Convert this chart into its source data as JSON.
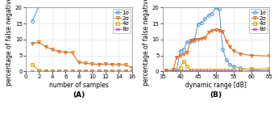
{
  "plot_A": {
    "xlabel": "number of samples",
    "ylabel": "percentage of false negatives",
    "label": "(A)",
    "xlim": [
      0,
      16
    ],
    "ylim": [
      0,
      20
    ],
    "xticks": [
      0,
      2,
      4,
      6,
      8,
      10,
      12,
      14,
      16
    ],
    "yticks": [
      0,
      5,
      10,
      15,
      20
    ],
    "series": {
      "1sigma": {
        "x": [
          1,
          2
        ],
        "y": [
          15.8,
          20.5
        ],
        "color": "#5599dd",
        "marker": "o",
        "label": "1σ"
      },
      "2sigma": {
        "x": [
          1,
          2,
          3,
          4,
          5,
          6,
          7,
          8,
          9,
          10,
          11,
          12,
          13,
          14,
          15,
          16
        ],
        "y": [
          8.8,
          9.1,
          7.8,
          6.8,
          6.2,
          6.0,
          5.8,
          2.8,
          2.5,
          2.3,
          2.2,
          2.3,
          2.2,
          2.1,
          2.0,
          1.1
        ],
        "color": "#dd6611",
        "marker": "v",
        "label": "2σ"
      },
      "4sigma": {
        "x": [
          1,
          2,
          3,
          4,
          5,
          6,
          7,
          8,
          9,
          10,
          11,
          12,
          13,
          14,
          15,
          16
        ],
        "y": [
          2.2,
          0.2,
          0.1,
          0.0,
          0.0,
          0.0,
          0.0,
          0.0,
          0.0,
          0.0,
          0.0,
          0.0,
          0.0,
          0.0,
          0.0,
          0.0
        ],
        "color": "#ddaa00",
        "marker": "s",
        "label": "4σ"
      },
      "8sigma": {
        "x": [
          1,
          2,
          3,
          4,
          5,
          6,
          7,
          8,
          9,
          10,
          11,
          12,
          13,
          14,
          15,
          16
        ],
        "y": [
          0.05,
          0.05,
          0.05,
          0.05,
          0.05,
          0.05,
          0.05,
          0.05,
          0.05,
          0.05,
          0.05,
          0.05,
          0.05,
          0.05,
          0.05,
          0.05
        ],
        "color": "#aa55cc",
        "marker": "x",
        "label": "8σ"
      }
    }
  },
  "plot_B": {
    "xlabel": "dynamic range [dB]",
    "ylabel": "percentage of false negatives",
    "label": "(B)",
    "xlim": [
      35,
      65
    ],
    "ylim": [
      0,
      20
    ],
    "xticks": [
      35,
      40,
      45,
      50,
      55,
      60,
      65
    ],
    "yticks": [
      0,
      5,
      10,
      15,
      20
    ],
    "series": {
      "1sigma": {
        "x": [
          36,
          38,
          39,
          40,
          41,
          42,
          43,
          44,
          45,
          46,
          47,
          48,
          49,
          50,
          51,
          52,
          53,
          54,
          55,
          57,
          60,
          65
        ],
        "y": [
          0.1,
          0.2,
          0.3,
          6.5,
          7.0,
          9.2,
          9.5,
          9.8,
          14.8,
          15.2,
          16.5,
          17.5,
          18.2,
          20.0,
          19.5,
          7.0,
          3.5,
          2.2,
          1.5,
          1.0,
          0.5,
          0.2
        ],
        "color": "#5599dd",
        "marker": "o",
        "label": "1σ"
      },
      "2sigma": {
        "x": [
          36,
          38,
          39,
          40,
          41,
          42,
          43,
          44,
          45,
          46,
          47,
          48,
          49,
          50,
          51,
          52,
          53,
          54,
          55,
          57,
          60,
          65
        ],
        "y": [
          0.2,
          0.5,
          4.5,
          5.0,
          5.5,
          6.0,
          9.8,
          10.0,
          10.0,
          10.2,
          10.5,
          12.2,
          12.8,
          13.0,
          12.8,
          12.5,
          9.5,
          7.8,
          6.5,
          5.5,
          5.0,
          4.8
        ],
        "color": "#dd6611",
        "marker": "v",
        "label": "2σ"
      },
      "4sigma": {
        "x": [
          36,
          38,
          39,
          40,
          41,
          42,
          43,
          44,
          45,
          46,
          47,
          48,
          49,
          50,
          51,
          52,
          53,
          54,
          55,
          57,
          60,
          65
        ],
        "y": [
          0.0,
          0.0,
          0.0,
          1.0,
          3.2,
          1.5,
          0.3,
          0.2,
          0.2,
          0.2,
          0.2,
          0.2,
          0.2,
          0.2,
          0.2,
          0.2,
          0.2,
          0.2,
          0.2,
          0.5,
          0.8,
          0.8
        ],
        "color": "#ddaa00",
        "marker": "s",
        "label": "4σ"
      },
      "8sigma": {
        "x": [
          36,
          38,
          39,
          40,
          41,
          42,
          43,
          44,
          45,
          46,
          47,
          48,
          49,
          50,
          51,
          52,
          53,
          54,
          55,
          57,
          60,
          65
        ],
        "y": [
          0.05,
          0.05,
          0.05,
          0.1,
          0.15,
          0.15,
          0.15,
          0.1,
          0.05,
          0.05,
          0.05,
          0.05,
          0.05,
          0.05,
          0.05,
          0.05,
          0.05,
          0.05,
          0.05,
          0.05,
          0.1,
          0.1
        ],
        "color": "#aa55cc",
        "marker": "x",
        "label": "8σ"
      }
    }
  },
  "background_color": "#ffffff",
  "grid_color": "#dddddd",
  "legend_fontsize": 5.0,
  "axis_fontsize": 5.5,
  "tick_fontsize": 5.0,
  "label_fontsize": 6.5,
  "marker_size": 2.8,
  "line_width": 0.75
}
